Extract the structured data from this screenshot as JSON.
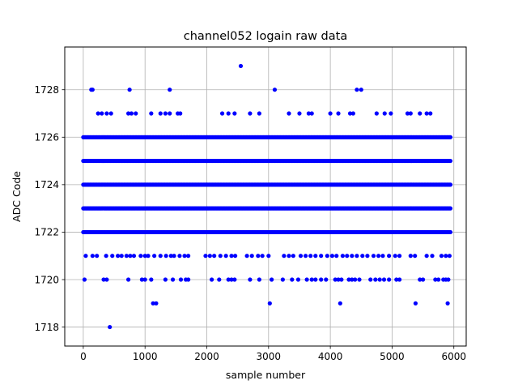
{
  "chart_data": {
    "type": "scatter",
    "title": "channel052 logain raw data",
    "xlabel": "sample number",
    "ylabel": "ADC Code",
    "xlim": [
      -300,
      6200
    ],
    "ylim": [
      1717.2,
      1729.8
    ],
    "xticks": [
      0,
      1000,
      2000,
      3000,
      4000,
      5000,
      6000
    ],
    "yticks": [
      1718,
      1720,
      1722,
      1724,
      1726,
      1728
    ],
    "grid": true,
    "marker": "circle",
    "color": "#0000ff",
    "x_range": [
      0,
      5950
    ],
    "dense_levels": [
      1722,
      1723,
      1724,
      1725,
      1726
    ],
    "series": [
      {
        "points": [
          [
            2550,
            1729
          ],
          [
            130,
            1728
          ],
          [
            150,
            1728
          ],
          [
            750,
            1728
          ],
          [
            1400,
            1728
          ],
          [
            3100,
            1728
          ],
          [
            4430,
            1728
          ],
          [
            4500,
            1728
          ],
          [
            240,
            1727
          ],
          [
            300,
            1727
          ],
          [
            380,
            1727
          ],
          [
            450,
            1727
          ],
          [
            730,
            1727
          ],
          [
            780,
            1727
          ],
          [
            850,
            1727
          ],
          [
            1100,
            1727
          ],
          [
            1250,
            1727
          ],
          [
            1330,
            1727
          ],
          [
            1400,
            1727
          ],
          [
            1530,
            1727
          ],
          [
            1570,
            1727
          ],
          [
            2250,
            1727
          ],
          [
            2350,
            1727
          ],
          [
            2450,
            1727
          ],
          [
            2700,
            1727
          ],
          [
            2850,
            1727
          ],
          [
            3330,
            1727
          ],
          [
            3500,
            1727
          ],
          [
            3650,
            1727
          ],
          [
            3700,
            1727
          ],
          [
            4000,
            1727
          ],
          [
            4130,
            1727
          ],
          [
            4320,
            1727
          ],
          [
            4370,
            1727
          ],
          [
            4750,
            1727
          ],
          [
            4880,
            1727
          ],
          [
            4980,
            1727
          ],
          [
            5250,
            1727
          ],
          [
            5300,
            1727
          ],
          [
            5450,
            1727
          ],
          [
            5560,
            1727
          ],
          [
            5620,
            1727
          ],
          [
            40,
            1721
          ],
          [
            150,
            1721
          ],
          [
            220,
            1721
          ],
          [
            370,
            1721
          ],
          [
            470,
            1721
          ],
          [
            560,
            1721
          ],
          [
            620,
            1721
          ],
          [
            700,
            1721
          ],
          [
            760,
            1721
          ],
          [
            820,
            1721
          ],
          [
            930,
            1721
          ],
          [
            1000,
            1721
          ],
          [
            1050,
            1721
          ],
          [
            1150,
            1721
          ],
          [
            1250,
            1721
          ],
          [
            1340,
            1721
          ],
          [
            1420,
            1721
          ],
          [
            1470,
            1721
          ],
          [
            1560,
            1721
          ],
          [
            1640,
            1721
          ],
          [
            1700,
            1721
          ],
          [
            1980,
            1721
          ],
          [
            2050,
            1721
          ],
          [
            2120,
            1721
          ],
          [
            2220,
            1721
          ],
          [
            2310,
            1721
          ],
          [
            2400,
            1721
          ],
          [
            2460,
            1721
          ],
          [
            2650,
            1721
          ],
          [
            2730,
            1721
          ],
          [
            2830,
            1721
          ],
          [
            2900,
            1721
          ],
          [
            3000,
            1721
          ],
          [
            3250,
            1721
          ],
          [
            3330,
            1721
          ],
          [
            3400,
            1721
          ],
          [
            3520,
            1721
          ],
          [
            3600,
            1721
          ],
          [
            3680,
            1721
          ],
          [
            3760,
            1721
          ],
          [
            3850,
            1721
          ],
          [
            3950,
            1721
          ],
          [
            4030,
            1721
          ],
          [
            4100,
            1721
          ],
          [
            4200,
            1721
          ],
          [
            4270,
            1721
          ],
          [
            4350,
            1721
          ],
          [
            4430,
            1721
          ],
          [
            4520,
            1721
          ],
          [
            4600,
            1721
          ],
          [
            4700,
            1721
          ],
          [
            4780,
            1721
          ],
          [
            4850,
            1721
          ],
          [
            4950,
            1721
          ],
          [
            5050,
            1721
          ],
          [
            5120,
            1721
          ],
          [
            5300,
            1721
          ],
          [
            5370,
            1721
          ],
          [
            5560,
            1721
          ],
          [
            5650,
            1721
          ],
          [
            5800,
            1721
          ],
          [
            5870,
            1721
          ],
          [
            5930,
            1721
          ],
          [
            20,
            1720
          ],
          [
            330,
            1720
          ],
          [
            380,
            1720
          ],
          [
            730,
            1720
          ],
          [
            950,
            1720
          ],
          [
            1000,
            1720
          ],
          [
            1100,
            1720
          ],
          [
            1330,
            1720
          ],
          [
            1450,
            1720
          ],
          [
            1580,
            1720
          ],
          [
            1660,
            1720
          ],
          [
            1700,
            1720
          ],
          [
            2080,
            1720
          ],
          [
            2200,
            1720
          ],
          [
            2350,
            1720
          ],
          [
            2400,
            1720
          ],
          [
            2450,
            1720
          ],
          [
            2700,
            1720
          ],
          [
            2850,
            1720
          ],
          [
            3050,
            1720
          ],
          [
            3230,
            1720
          ],
          [
            3380,
            1720
          ],
          [
            3480,
            1720
          ],
          [
            3620,
            1720
          ],
          [
            3700,
            1720
          ],
          [
            3760,
            1720
          ],
          [
            3850,
            1720
          ],
          [
            3930,
            1720
          ],
          [
            4080,
            1720
          ],
          [
            4130,
            1720
          ],
          [
            4180,
            1720
          ],
          [
            4300,
            1720
          ],
          [
            4350,
            1720
          ],
          [
            4400,
            1720
          ],
          [
            4470,
            1720
          ],
          [
            4650,
            1720
          ],
          [
            4730,
            1720
          ],
          [
            4800,
            1720
          ],
          [
            4870,
            1720
          ],
          [
            4950,
            1720
          ],
          [
            5070,
            1720
          ],
          [
            5120,
            1720
          ],
          [
            5450,
            1720
          ],
          [
            5500,
            1720
          ],
          [
            5700,
            1720
          ],
          [
            5750,
            1720
          ],
          [
            5830,
            1720
          ],
          [
            5870,
            1720
          ],
          [
            5910,
            1720
          ],
          [
            1130,
            1719
          ],
          [
            1180,
            1719
          ],
          [
            3020,
            1719
          ],
          [
            4160,
            1719
          ],
          [
            5380,
            1719
          ],
          [
            5900,
            1719
          ],
          [
            430,
            1718
          ]
        ]
      }
    ]
  }
}
